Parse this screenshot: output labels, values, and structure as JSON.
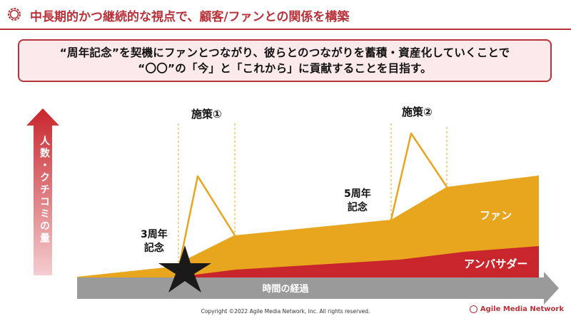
{
  "header": {
    "title": "中長期的かつ継続的な視点で、顧客/ファンとの関係を構築",
    "badge_icon": "flower-badge-icon",
    "accent": "#b8323a"
  },
  "callout": {
    "line1": "“周年記念”を契機にファンとつながり、彼らとのつながりを蓄積・資産化していくことで",
    "line2": "“〇〇”の「今」と「これから」に貢献することを目指す。"
  },
  "axes": {
    "y_label": "人数・クチコミの量",
    "x_label": "時間の経過"
  },
  "milestones": {
    "anniv3": "3周年\n記念",
    "anniv5": "5周年\n記念",
    "measure1": "施策①",
    "measure2": "施策②"
  },
  "legend": {
    "fan": "ファン",
    "ambassador": "アンバサダー"
  },
  "colors": {
    "fan": "#e8a61e",
    "ambassador": "#c8262c",
    "axis_gray": "#9a9a9a",
    "y_arrow_top": "#c8262c",
    "y_arrow_bottom": "#f2c5c8"
  },
  "footer": {
    "copyright": "Copyright ©2022 Agile Media Network, Inc. All rights reserved.",
    "brand": "Agile Media Network"
  }
}
